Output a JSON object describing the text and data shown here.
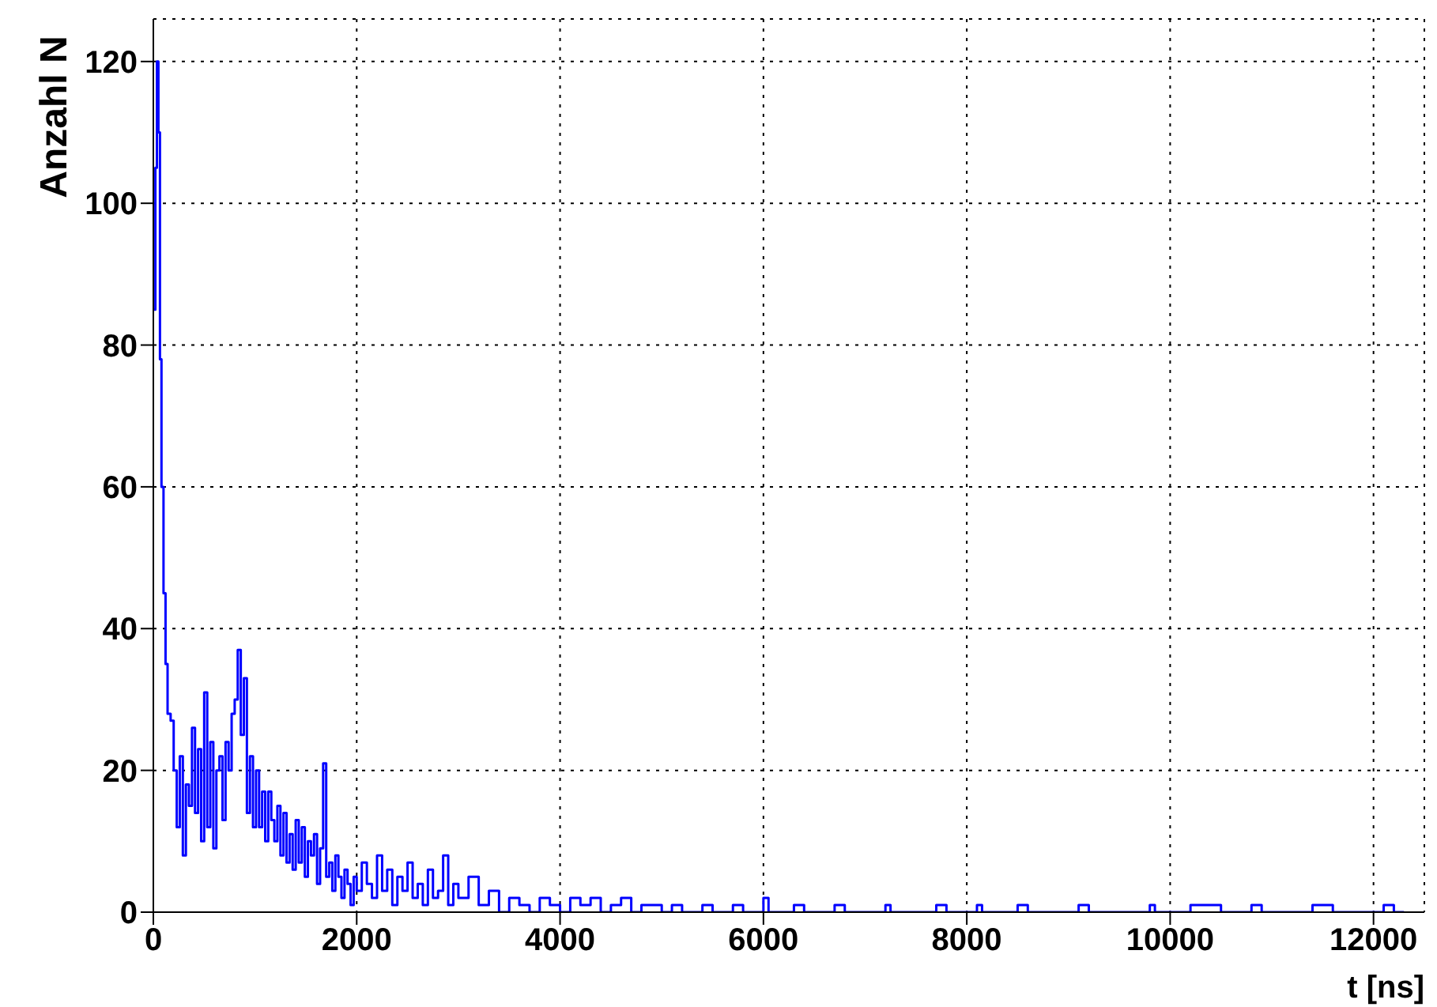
{
  "chart_data": {
    "type": "step",
    "xlabel": "t [ns]",
    "ylabel": "Anzahl N",
    "xlim": [
      0,
      12500
    ],
    "xticks": [
      0,
      2000,
      4000,
      6000,
      8000,
      10000,
      12000
    ],
    "ylim": [
      0,
      126
    ],
    "yticks": [
      0,
      20,
      40,
      60,
      80,
      100,
      120
    ],
    "grid": true,
    "series": [
      {
        "color": "#0000ff",
        "x": [
          0,
          20,
          35,
          50,
          65,
          80,
          100,
          120,
          140,
          170,
          200,
          230,
          260,
          290,
          320,
          350,
          380,
          410,
          440,
          470,
          500,
          530,
          560,
          590,
          620,
          650,
          680,
          710,
          740,
          770,
          800,
          830,
          860,
          890,
          920,
          950,
          980,
          1010,
          1040,
          1070,
          1100,
          1130,
          1160,
          1190,
          1220,
          1250,
          1280,
          1310,
          1340,
          1370,
          1400,
          1430,
          1460,
          1490,
          1520,
          1550,
          1580,
          1610,
          1640,
          1670,
          1700,
          1730,
          1760,
          1790,
          1820,
          1850,
          1880,
          1910,
          1940,
          1970,
          2000,
          2050,
          2100,
          2150,
          2200,
          2250,
          2300,
          2350,
          2400,
          2450,
          2500,
          2550,
          2600,
          2650,
          2700,
          2750,
          2800,
          2850,
          2900,
          2950,
          3000,
          3100,
          3200,
          3300,
          3400,
          3500,
          3600,
          3700,
          3800,
          3900,
          4000,
          4100,
          4200,
          4300,
          4400,
          4500,
          4600,
          4700,
          4800,
          5000,
          5100,
          5200,
          5400,
          5500,
          5700,
          5800,
          6000,
          6050,
          6300,
          6400,
          6700,
          6800,
          7200,
          7250,
          7700,
          7800,
          8100,
          8150,
          8500,
          8600,
          9100,
          9200,
          9800,
          9850,
          10200,
          10500,
          10800,
          10900,
          11400,
          11600,
          12100,
          12200,
          12300
        ],
        "values": [
          85,
          105,
          120,
          110,
          78,
          60,
          45,
          35,
          28,
          27,
          20,
          12,
          22,
          8,
          18,
          15,
          26,
          14,
          23,
          10,
          31,
          12,
          24,
          9,
          20,
          22,
          13,
          24,
          20,
          28,
          30,
          37,
          25,
          33,
          14,
          22,
          12,
          20,
          12,
          17,
          10,
          17,
          13,
          10,
          15,
          8,
          14,
          7,
          11,
          6,
          13,
          7,
          12,
          5,
          10,
          8,
          11,
          4,
          9,
          21,
          5,
          7,
          3,
          8,
          5,
          2,
          6,
          4,
          1,
          5,
          3,
          7,
          4,
          2,
          8,
          3,
          6,
          1,
          5,
          3,
          7,
          2,
          4,
          1,
          6,
          2,
          3,
          8,
          1,
          4,
          2,
          5,
          1,
          3,
          0,
          2,
          1,
          0,
          2,
          1,
          0,
          2,
          1,
          2,
          0,
          1,
          2,
          0,
          1,
          0,
          1,
          0,
          1,
          0,
          1,
          0,
          2,
          0,
          1,
          0,
          1,
          0,
          1,
          0,
          1,
          0,
          1,
          0,
          1,
          0,
          1,
          0,
          1,
          0,
          1,
          0,
          1,
          0,
          1,
          0,
          1,
          0,
          0
        ]
      }
    ]
  }
}
